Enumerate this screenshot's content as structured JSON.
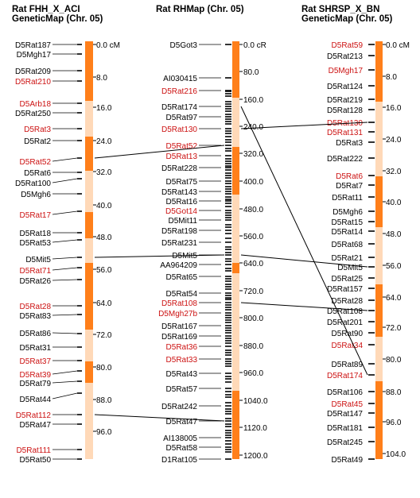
{
  "maps": [
    {
      "id": "fhh",
      "title_line1": "Rat FHH_X_ACI",
      "title_line2": "GeneticMap (Chr. 05)",
      "scale_ticks": [
        "0.0 cM",
        "8.0",
        "16.0",
        "24.0",
        "32.0",
        "40.0",
        "48.0",
        "56.0",
        "64.0",
        "72.0",
        "80.0",
        "88.0",
        "96.0"
      ],
      "markers": [
        {
          "name": "D5Rat187",
          "hl": false
        },
        {
          "name": "D5Mgh17",
          "hl": false
        },
        {
          "name": "D5Rat209",
          "hl": false
        },
        {
          "name": "D5Rat210",
          "hl": true
        },
        {
          "name": "D5Arb18",
          "hl": true
        },
        {
          "name": "D5Rat250",
          "hl": false
        },
        {
          "name": "D5Rat3",
          "hl": true
        },
        {
          "name": "D5Rat2",
          "hl": false
        },
        {
          "name": "D5Rat52",
          "hl": true
        },
        {
          "name": "D5Rat6",
          "hl": false
        },
        {
          "name": "D5Rat100",
          "hl": false
        },
        {
          "name": "D5Mgh6",
          "hl": false
        },
        {
          "name": "D5Rat17",
          "hl": true
        },
        {
          "name": "D5Rat18",
          "hl": false
        },
        {
          "name": "D5Rat53",
          "hl": false
        },
        {
          "name": "D5Mit5",
          "hl": false
        },
        {
          "name": "D5Rat71",
          "hl": true
        },
        {
          "name": "D5Rat26",
          "hl": false
        },
        {
          "name": "D5Rat28",
          "hl": true
        },
        {
          "name": "D5Rat83",
          "hl": false
        },
        {
          "name": "D5Rat86",
          "hl": false
        },
        {
          "name": "D5Rat31",
          "hl": false
        },
        {
          "name": "D5Rat37",
          "hl": true
        },
        {
          "name": "D5Rat39",
          "hl": true
        },
        {
          "name": "D5Rat79",
          "hl": false
        },
        {
          "name": "D5Rat44",
          "hl": false
        },
        {
          "name": "D5Rat112",
          "hl": true
        },
        {
          "name": "D5Rat47",
          "hl": false
        },
        {
          "name": "D5Rat111",
          "hl": true
        },
        {
          "name": "D5Rat50",
          "hl": false
        }
      ]
    },
    {
      "id": "rh",
      "title_line1": "Rat RHMap (Chr. 05)",
      "title_line2": "",
      "scale_ticks": [
        "0.0 cR",
        "80.0",
        "160.0",
        "240.0",
        "320.0",
        "400.0",
        "480.0",
        "560.0",
        "640.0",
        "720.0",
        "800.0",
        "880.0",
        "960.0",
        "1040.0",
        "1120.0",
        "1200.0"
      ],
      "markers": [
        {
          "name": "D5Got3",
          "hl": false
        },
        {
          "name": "AI030415",
          "hl": false
        },
        {
          "name": "D5Rat216",
          "hl": true
        },
        {
          "name": "D5Rat174",
          "hl": false
        },
        {
          "name": "D5Rat97",
          "hl": false
        },
        {
          "name": "D5Rat130",
          "hl": true
        },
        {
          "name": "D5Rat52",
          "hl": true
        },
        {
          "name": "D5Rat13",
          "hl": true
        },
        {
          "name": "D5Rat228",
          "hl": false
        },
        {
          "name": "D5Rat75",
          "hl": false
        },
        {
          "name": "D5Rat143",
          "hl": false
        },
        {
          "name": "D5Rat16",
          "hl": false
        },
        {
          "name": "D5Got14",
          "hl": true
        },
        {
          "name": "D5Mit11",
          "hl": false
        },
        {
          "name": "D5Rat198",
          "hl": false
        },
        {
          "name": "D5Rat231",
          "hl": false
        },
        {
          "name": "D5Mit5",
          "hl": false
        },
        {
          "name": "AA964209",
          "hl": false
        },
        {
          "name": "D5Rat65",
          "hl": false
        },
        {
          "name": "D5Rat54",
          "hl": false
        },
        {
          "name": "D5Rat108",
          "hl": true
        },
        {
          "name": "D5Mgh27b",
          "hl": true
        },
        {
          "name": "D5Rat167",
          "hl": false
        },
        {
          "name": "D5Rat169",
          "hl": false
        },
        {
          "name": "D5Rat36",
          "hl": true
        },
        {
          "name": "D5Rat33",
          "hl": true
        },
        {
          "name": "D5Rat43",
          "hl": false
        },
        {
          "name": "D5Rat57",
          "hl": false
        },
        {
          "name": "D5Rat242",
          "hl": false
        },
        {
          "name": "D5Rat47",
          "hl": false
        },
        {
          "name": "AI138005",
          "hl": false
        },
        {
          "name": "D5Rat58",
          "hl": false
        },
        {
          "name": "D1Rat105",
          "hl": false
        }
      ]
    },
    {
      "id": "shrsp",
      "title_line1": "Rat SHRSP_X_BN",
      "title_line2": "GeneticMap (Chr. 05)",
      "scale_ticks": [
        "0.0 cM",
        "8.0",
        "16.0",
        "24.0",
        "32.0",
        "40.0",
        "48.0",
        "56.0",
        "64.0",
        "72.0",
        "80.0",
        "88.0",
        "96.0",
        "104.0"
      ],
      "markers": [
        {
          "name": "D5Rat59",
          "hl": true
        },
        {
          "name": "D5Rat213",
          "hl": false
        },
        {
          "name": "D5Mgh17",
          "hl": true
        },
        {
          "name": "D5Rat124",
          "hl": false
        },
        {
          "name": "D5Rat219",
          "hl": false
        },
        {
          "name": "D5Rat128",
          "hl": false
        },
        {
          "name": "D5Rat130",
          "hl": true
        },
        {
          "name": "D5Rat131",
          "hl": true
        },
        {
          "name": "D5Rat3",
          "hl": false
        },
        {
          "name": "D5Rat222",
          "hl": false
        },
        {
          "name": "D5Rat6",
          "hl": true
        },
        {
          "name": "D5Rat7",
          "hl": false
        },
        {
          "name": "D5Rat11",
          "hl": false
        },
        {
          "name": "D5Mgh6",
          "hl": false
        },
        {
          "name": "D5Rat15",
          "hl": false
        },
        {
          "name": "D5Rat14",
          "hl": false
        },
        {
          "name": "D5Rat68",
          "hl": false
        },
        {
          "name": "D5Rat21",
          "hl": false
        },
        {
          "name": "D5Mit5",
          "hl": false
        },
        {
          "name": "D5Rat25",
          "hl": false
        },
        {
          "name": "D5Rat157",
          "hl": false
        },
        {
          "name": "D5Rat28",
          "hl": false
        },
        {
          "name": "D5Rat108",
          "hl": false
        },
        {
          "name": "D5Rat201",
          "hl": false
        },
        {
          "name": "D5Rat90",
          "hl": false
        },
        {
          "name": "D5Rat34",
          "hl": true
        },
        {
          "name": "D5Rat89",
          "hl": false
        },
        {
          "name": "D5Rat174",
          "hl": true
        },
        {
          "name": "D5Rat106",
          "hl": false
        },
        {
          "name": "D5Rat45",
          "hl": true
        },
        {
          "name": "D5Rat147",
          "hl": false
        },
        {
          "name": "D5Rat181",
          "hl": false
        },
        {
          "name": "D5Rat245",
          "hl": false
        },
        {
          "name": "D5Rat49",
          "hl": false
        }
      ]
    }
  ],
  "colors": {
    "band_dark": "#ff7f1a",
    "band_light": "#ffd9b8",
    "highlight_text": "#cc1111",
    "normal_text": "#000000",
    "connector": "#000000"
  }
}
